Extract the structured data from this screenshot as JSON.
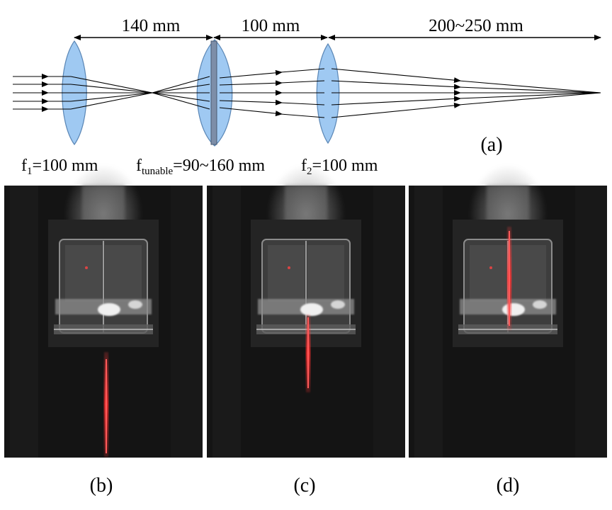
{
  "diagram": {
    "dimensions": [
      "140 mm",
      "100 mm",
      "200~250 mm"
    ],
    "lenses": [
      {
        "symbol": "f",
        "sub": "1",
        "value": "=100 mm"
      },
      {
        "symbol": "f",
        "sub": "tunable",
        "value": "=90~160 mm"
      },
      {
        "symbol": "f",
        "sub": "2",
        "value": "=100 mm"
      }
    ],
    "panel_label": "(a)"
  },
  "photos": [
    {
      "label": "(b)",
      "beam": "below"
    },
    {
      "label": "(c)",
      "beam": "middle"
    },
    {
      "label": "(d)",
      "beam": "through"
    }
  ],
  "colors": {
    "lens_fill": "#9fc9f2",
    "lens_stroke": "#5a86b5",
    "tunable_bar": "#7d8ea8",
    "ray": "#000000",
    "laser": "#ff2a2a",
    "photo_bg": "#151515"
  }
}
